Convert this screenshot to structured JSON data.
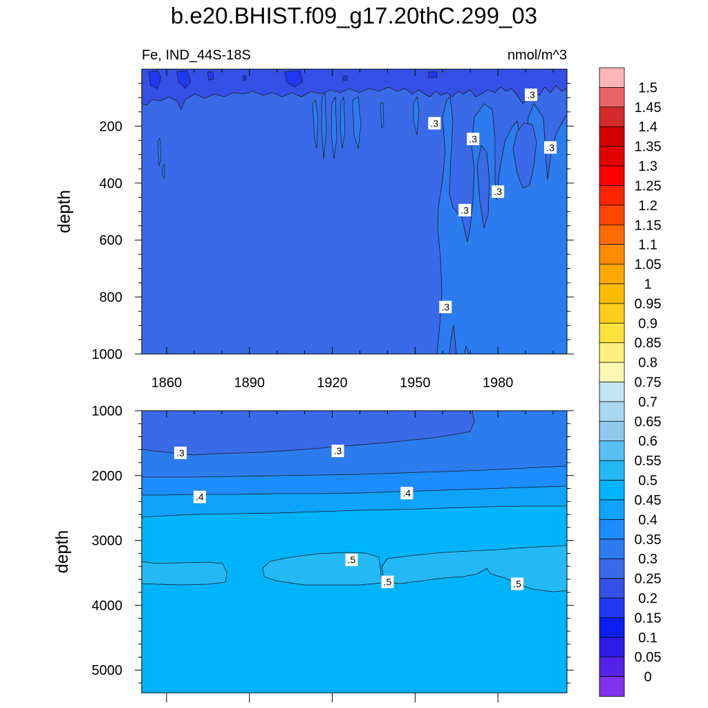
{
  "title": "b.e20.BHIST.f09_g17.20thC.299_03",
  "chart_data": [
    {
      "type": "heatmap",
      "panel": "upper",
      "subtitle_left": "Fe, IND_44S-18S",
      "subtitle_right": "nmol/m^3",
      "ylabel": "depth",
      "xlim": [
        1851,
        2005
      ],
      "ylim": [
        1000,
        0
      ],
      "x_ticks": [
        1860,
        1890,
        1920,
        1950,
        1980
      ],
      "x_tick_labels": [
        "1860",
        "1890",
        "1920",
        "1950",
        "1980"
      ],
      "y_ticks": [
        200,
        400,
        600,
        800,
        1000
      ],
      "y_tick_labels": [
        "200",
        "400",
        "600",
        "800",
        "1000"
      ],
      "background_value": 0.275,
      "contour_labels": [
        {
          "text": ".3",
          "x": 1957,
          "y": 190
        },
        {
          "text": ".3",
          "x": 1971,
          "y": 245
        },
        {
          "text": ".3",
          "x": 1999,
          "y": 275
        },
        {
          "text": ".3",
          "x": 1992,
          "y": 90
        },
        {
          "text": ".3",
          "x": 1980,
          "y": 430
        },
        {
          "text": ".3",
          "x": 1968,
          "y": 495
        },
        {
          "text": ".3",
          "x": 1961,
          "y": 835
        }
      ]
    },
    {
      "type": "heatmap",
      "panel": "lower",
      "ylabel": "depth",
      "xlim": [
        1851,
        2005
      ],
      "ylim": [
        5350,
        1000
      ],
      "y_ticks": [
        1000,
        2000,
        3000,
        4000,
        5000
      ],
      "y_tick_labels": [
        "1000",
        "2000",
        "3000",
        "4000",
        "5000"
      ],
      "bands": [
        {
          "range": [
            0.25,
            0.3
          ],
          "depth": "1000-1650"
        },
        {
          "range": [
            0.3,
            0.35
          ],
          "depth": "1650-2000"
        },
        {
          "range": [
            0.35,
            0.4
          ],
          "depth": "2000-2300"
        },
        {
          "range": [
            0.4,
            0.45
          ],
          "depth": "2300-2650"
        },
        {
          "range": [
            0.45,
            0.5
          ],
          "depth": "2650-5350"
        }
      ],
      "contour_labels": [
        {
          "text": ".3",
          "x": 1865,
          "y": 1650
        },
        {
          "text": ".3",
          "x": 1922,
          "y": 1620
        },
        {
          "text": ".4",
          "x": 1872,
          "y": 2330
        },
        {
          "text": ".4",
          "x": 1947,
          "y": 2270
        },
        {
          "text": ".5",
          "x": 1927,
          "y": 3300
        },
        {
          "text": ".5",
          "x": 1940,
          "y": 3640
        },
        {
          "text": ".5",
          "x": 1987,
          "y": 3670
        }
      ]
    }
  ],
  "colorbar": {
    "labels": [
      "1.5",
      "1.45",
      "1.4",
      "1.35",
      "1.3",
      "1.25",
      "1.2",
      "1.15",
      "1.1",
      "1.05",
      "1",
      "0.95",
      "0.9",
      "0.85",
      "0.8",
      "0.75",
      "0.7",
      "0.65",
      "0.6",
      "0.55",
      "0.5",
      "0.45",
      "0.4",
      "0.35",
      "0.3",
      "0.25",
      "0.2",
      "0.15",
      "0.1",
      "0.05",
      "0"
    ],
    "colors": [
      "#fdb5b5",
      "#e86466",
      "#d42a2a",
      "#d20000",
      "#e50000",
      "#fd0000",
      "#fd2400",
      "#fe4600",
      "#fe6b00",
      "#fe8b00",
      "#fea800",
      "#fdbb00",
      "#fdcd18",
      "#fde23c",
      "#fdf07c",
      "#fdf9b4",
      "#c3e5f5",
      "#a7d8f0",
      "#8fcaee",
      "#58c0f5",
      "#24b9f5",
      "#00b4fc",
      "#0ea3fc",
      "#1d8cfc",
      "#2c7cf0",
      "#3a6ae8",
      "#3550e6",
      "#1f38f1",
      "#0c1ef3",
      "#2d1ce6",
      "#5722e8",
      "#8033ea"
    ]
  }
}
